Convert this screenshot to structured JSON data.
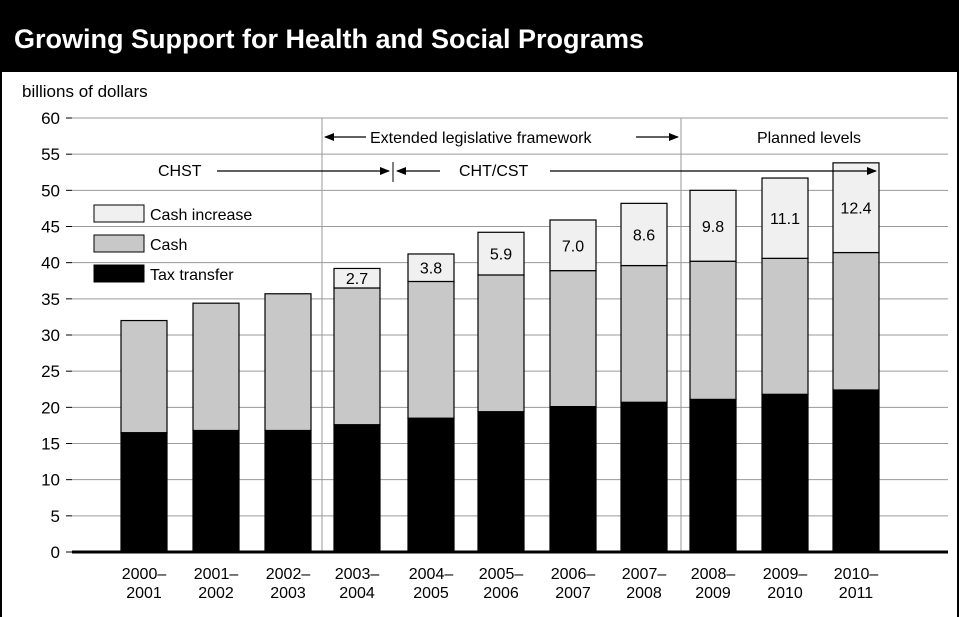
{
  "colors": {
    "tax_transfer": "#000000",
    "cash": "#c8c8c8",
    "cash_increase": "#f0f0f0",
    "title_bar": "#000000"
  },
  "chart_data": {
    "type": "bar",
    "stacked": true,
    "title": "Growing Support for Health and Social Programs",
    "ylabel": "billions of dollars",
    "ylim": [
      0,
      60
    ],
    "yticks": [
      "0",
      "5",
      "10",
      "15",
      "20",
      "25",
      "30",
      "35",
      "40",
      "45",
      "50",
      "55",
      "60"
    ],
    "grid": true,
    "legend_position": "upper-left",
    "categories": [
      [
        "2000–",
        "2001"
      ],
      [
        "2001–",
        "2002"
      ],
      [
        "2002–",
        "2003"
      ],
      [
        "2003–",
        "2004"
      ],
      [
        "2004–",
        "2005"
      ],
      [
        "2005–",
        "2006"
      ],
      [
        "2006–",
        "2007"
      ],
      [
        "2007–",
        "2008"
      ],
      [
        "2008–",
        "2009"
      ],
      [
        "2009–",
        "2010"
      ],
      [
        "2010–",
        "2011"
      ]
    ],
    "series": [
      {
        "name": "Tax transfer",
        "values": [
          16.5,
          16.8,
          16.8,
          17.6,
          18.5,
          19.4,
          20.1,
          20.7,
          21.1,
          21.8,
          22.4
        ]
      },
      {
        "name": "Cash",
        "values": [
          15.5,
          17.6,
          18.9,
          18.9,
          18.9,
          18.9,
          18.8,
          18.9,
          19.1,
          18.8,
          19.0
        ]
      },
      {
        "name": "Cash increase",
        "values": [
          0,
          0,
          0,
          2.7,
          3.8,
          5.9,
          7.0,
          8.6,
          9.8,
          11.1,
          12.4
        ],
        "data_labels": [
          "",
          "",
          "",
          "2.7",
          "3.8",
          "5.9",
          "7.0",
          "8.6",
          "9.8",
          "11.1",
          "12.4"
        ]
      }
    ],
    "annotations": {
      "extended": "Extended legislative framework",
      "planned": "Planned levels",
      "chst": "CHST",
      "cht_cst": "CHT/CST"
    }
  }
}
